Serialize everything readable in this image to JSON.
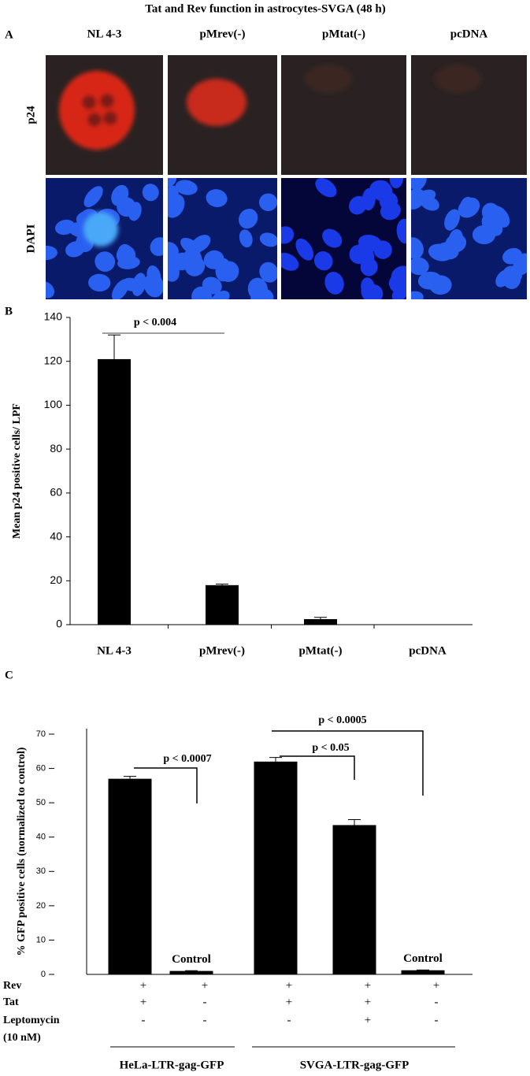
{
  "title": "Tat and Rev function in astrocytes-SVGA (48 h)",
  "panel_a": {
    "label": "A",
    "columns": [
      "NL 4-3",
      "pMrev(-)",
      "pMtat(-)",
      "pcDNA"
    ],
    "rows": [
      "p24",
      "DAPI"
    ]
  },
  "chart_data": [
    {
      "panel_label": "B",
      "type": "bar",
      "ylabel": "Mean p24 positive cells/ LPF",
      "categories": [
        "NL 4-3",
        "pMrev(-)",
        "pMtat(-)",
        "pcDNA"
      ],
      "values": [
        121,
        18,
        2.5,
        0
      ],
      "errors": [
        11,
        0.5,
        0.8,
        0
      ],
      "color": "#000000",
      "ylim": [
        0,
        140
      ],
      "yticks": [
        0,
        20,
        40,
        60,
        80,
        100,
        120,
        140
      ],
      "annotations": [
        "p < 0.004"
      ]
    },
    {
      "panel_label": "C",
      "type": "bar",
      "ylabel": "% GFP positive cells (normalized to control)",
      "categories": [
        null,
        null,
        null,
        null,
        null
      ],
      "bar_labels": [
        null,
        "Control",
        null,
        null,
        "Control"
      ],
      "values": [
        57,
        1,
        62,
        43.5,
        1.2
      ],
      "errors": [
        0.7,
        0.1,
        1.2,
        1.6,
        0.1
      ],
      "color": "#000000",
      "ylim": [
        0,
        70
      ],
      "yticks": [
        0,
        10,
        20,
        30,
        40,
        50,
        60,
        70
      ],
      "conditions": [
        {
          "name": "Rev",
          "values": [
            "+",
            "+",
            "+",
            "+",
            "+"
          ]
        },
        {
          "name": "Tat",
          "values": [
            "+",
            "-",
            "+",
            "+",
            "-"
          ]
        },
        {
          "name": "Leptomycin",
          "unit": "(10 nM)",
          "values": [
            "-",
            "-",
            "-",
            "+",
            "-"
          ]
        }
      ],
      "groups": [
        "HeLa-LTR-gag-GFP",
        "SVGA-LTR-gag-GFP"
      ],
      "annotations": [
        "p < 0.0007",
        "p < 0.05",
        "p < 0.0005"
      ]
    }
  ]
}
